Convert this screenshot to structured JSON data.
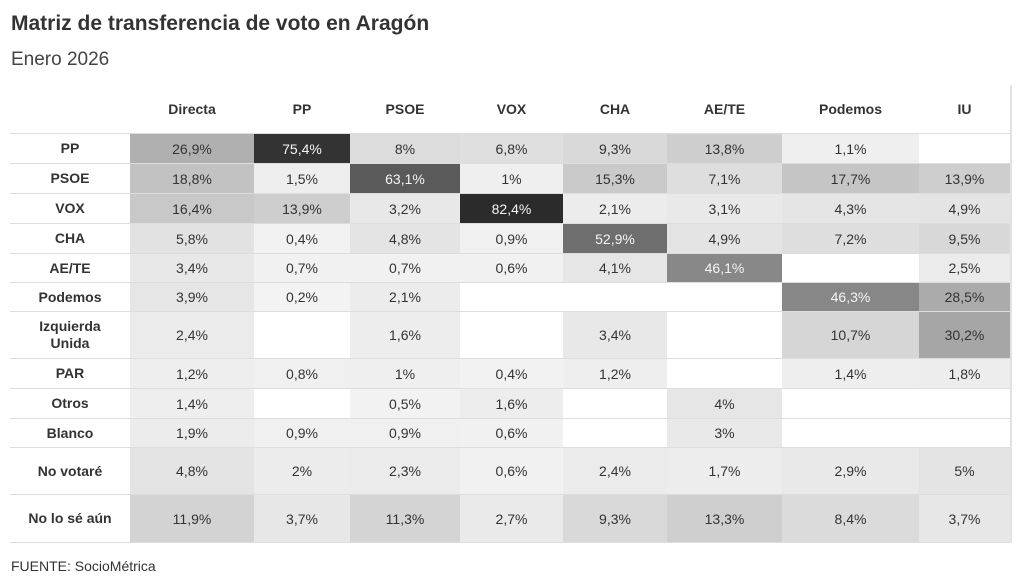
{
  "title": "Matriz de transferencia de voto en Aragón",
  "subtitle": "Enero 2026",
  "source": "FUENTE: SocioMétrica",
  "chart_data": {
    "type": "heatmap",
    "title": "Matriz de transferencia de voto en Aragón",
    "subtitle": "Enero 2026",
    "colors": {
      "low": "#f4f4f4",
      "high": "#2b2b2b",
      "empty": "#ffffff"
    },
    "columns": [
      "Directa",
      "PP",
      "PSOE",
      "VOX",
      "CHA",
      "AE/TE",
      "Podemos",
      "IU"
    ],
    "rows": [
      {
        "label": "PP",
        "values": [
          26.9,
          75.4,
          8,
          6.8,
          9.3,
          13.8,
          1.1,
          null
        ]
      },
      {
        "label": "PSOE",
        "values": [
          18.8,
          1.5,
          63.1,
          1,
          15.3,
          7.1,
          17.7,
          13.9
        ]
      },
      {
        "label": "VOX",
        "values": [
          16.4,
          13.9,
          3.2,
          82.4,
          2.1,
          3.1,
          4.3,
          4.9
        ]
      },
      {
        "label": "CHA",
        "values": [
          5.8,
          0.4,
          4.8,
          0.9,
          52.9,
          4.9,
          7.2,
          9.5
        ]
      },
      {
        "label": "AE/TE",
        "values": [
          3.4,
          0.7,
          0.7,
          0.6,
          4.1,
          46.1,
          null,
          2.5
        ]
      },
      {
        "label": "Podemos",
        "values": [
          3.9,
          0.2,
          2.1,
          null,
          null,
          null,
          46.3,
          28.5
        ]
      },
      {
        "label": "Izquierda Unida",
        "values": [
          2.4,
          null,
          1.6,
          null,
          3.4,
          null,
          10.7,
          30.2
        ]
      },
      {
        "label": "PAR",
        "values": [
          1.2,
          0.8,
          1,
          0.4,
          1.2,
          null,
          1.4,
          1.8
        ]
      },
      {
        "label": "Otros",
        "values": [
          1.4,
          null,
          0.5,
          1.6,
          null,
          4,
          null,
          null
        ]
      },
      {
        "label": "Blanco",
        "values": [
          1.9,
          0.9,
          0.9,
          0.6,
          null,
          3,
          null,
          null
        ]
      },
      {
        "label": "No votaré",
        "values": [
          4.8,
          2,
          2.3,
          0.6,
          2.4,
          1.7,
          2.9,
          5
        ]
      },
      {
        "label": "No lo sé aún",
        "values": [
          11.9,
          3.7,
          11.3,
          2.7,
          9.3,
          13.3,
          8.4,
          3.7
        ]
      }
    ]
  }
}
